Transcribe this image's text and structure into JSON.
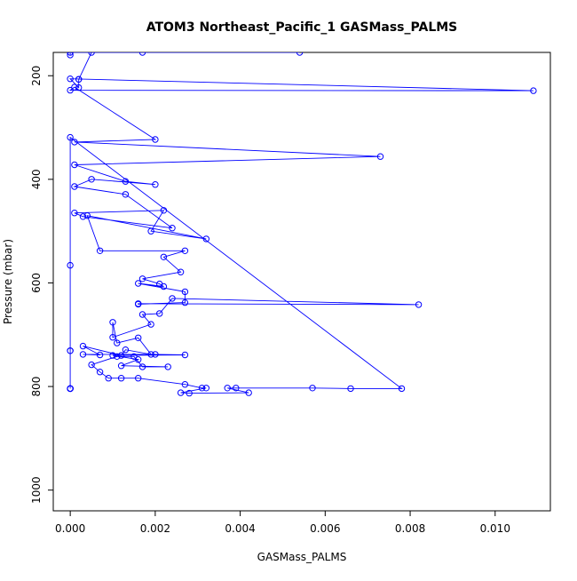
{
  "chart_data": {
    "type": "scatter",
    "title": "ATOM3 Northeast_Pacific_1 GASMass_PALMS",
    "xlabel": "GASMass_PALMS",
    "ylabel": "Pressure (mbar)",
    "xlim": [
      -0.0004,
      0.0113
    ],
    "ylim": [
      1040,
      155
    ],
    "y_inverted": true,
    "x_ticks": [
      0,
      0.002,
      0.004,
      0.006,
      0.008,
      0.01
    ],
    "x_tick_labels": [
      "0.000",
      "0.002",
      "0.004",
      "0.006",
      "0.008",
      "0.010"
    ],
    "y_ticks": [
      200,
      400,
      600,
      800,
      1000
    ],
    "y_tick_labels": [
      "200",
      "400",
      "600",
      "800",
      "1000"
    ],
    "grid": false,
    "legend": "none",
    "colors": {
      "series": "#0000ff",
      "frame": "#000000"
    },
    "series": [
      {
        "marker": "open-circle",
        "x": [
          0.0,
          0.0,
          0.0,
          0.0,
          0.0,
          0.0,
          0.0,
          0.0,
          0.0,
          0.0,
          0.0078,
          0.0066,
          0.0057,
          0.0039,
          0.0037,
          0.0042,
          0.0028,
          0.0026,
          0.0032,
          0.0031,
          0.0027,
          0.0016,
          0.0012,
          0.0009,
          0.0007,
          0.0005,
          0.0011,
          0.0015,
          0.0017,
          0.0023,
          0.0012,
          0.0016,
          0.001,
          0.0027,
          0.002,
          0.0003,
          0.0007,
          0.0003,
          0.0012,
          0.0013,
          0.0019,
          0.0016,
          0.0011,
          0.001,
          0.001,
          0.0019,
          0.0017,
          0.0021,
          0.0024,
          0.0082,
          0.0016,
          0.0016,
          0.0027,
          0.0027,
          0.0016,
          0.0022,
          0.0021,
          0.0017,
          0.0026,
          0.0022,
          0.0027,
          0.0007,
          0.0004,
          0.0032,
          0.0019,
          0.0022,
          0.0001,
          0.0003,
          0.0024,
          0.0013,
          0.0001,
          0.0005,
          0.002,
          0.0013,
          0.0001,
          0.0073,
          0.0001,
          0.002,
          0.0001,
          0.0,
          0.0109,
          0.0,
          0.0002,
          0.0002,
          0.0002,
          0.0005,
          0.0054,
          0.0017,
          0.0,
          0.0
        ],
        "y": [
          804,
          804,
          804,
          804,
          804,
          804,
          731,
          731,
          566,
          319,
          804,
          804,
          803,
          803,
          803,
          812,
          813,
          812,
          803,
          803,
          796,
          784,
          784,
          784,
          772,
          758,
          742,
          742,
          762,
          762,
          760,
          748,
          740,
          739,
          738,
          738,
          739,
          722,
          740,
          729,
          738,
          706,
          716,
          676,
          705,
          680,
          661,
          659,
          630,
          642,
          640,
          641,
          638,
          617,
          601,
          607,
          602,
          592,
          579,
          550,
          538,
          538,
          470,
          515,
          500,
          460,
          465,
          472,
          494,
          429,
          414,
          400,
          410,
          404,
          372,
          356,
          328,
          323,
          222,
          228,
          229,
          206,
          223,
          207,
          207,
          155,
          155,
          155,
          155,
          160
        ]
      }
    ]
  }
}
